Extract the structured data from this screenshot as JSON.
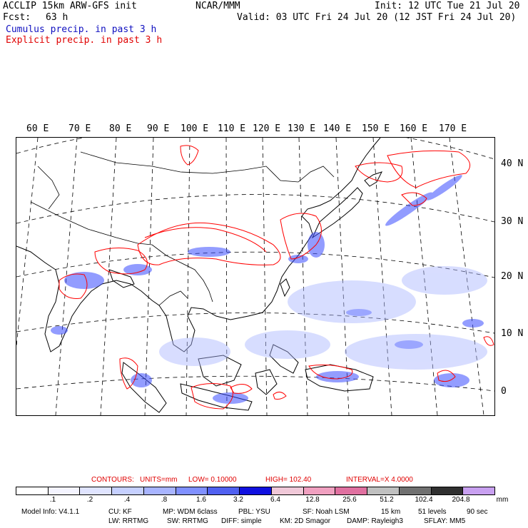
{
  "header": {
    "model": "ACCLIP 15km ARW-GFS init",
    "org": "NCAR/MMM",
    "init": "Init: 12 UTC Tue 21 Jul 20",
    "fcst_label": "Fcst:",
    "fcst_value": "63 h",
    "valid": "Valid: 03 UTC Fri 24 Jul 20 (12 JST Fri 24 Jul 20)",
    "legend_cumulus": "Cumulus precip. in past 3 h",
    "legend_explicit": "Explicit precip. in past 3 h"
  },
  "map": {
    "lon_labels": [
      "60 E",
      "70 E",
      "80 E",
      "90 E",
      "100 E",
      "110 E",
      "120 E",
      "130 E",
      "140 E",
      "150 E",
      "160 E",
      "170 E"
    ],
    "lat_labels": [
      "40 N",
      "30 N",
      "20 N",
      "10 N",
      "0"
    ],
    "colors": {
      "explicit_contour": "#ff0000",
      "cumulus_shade": "#3a4cff",
      "coastline": "#000000",
      "gridline": "#000000"
    }
  },
  "contours": {
    "label": "CONTOURS:",
    "units": "UNITS=mm",
    "low": "LOW= 0.10000",
    "high": "HIGH=  102.40",
    "interval": "INTERVAL=X  4.0000"
  },
  "colorbar": {
    "colors": [
      "#ffffff",
      "#f4f4ff",
      "#e0e4ff",
      "#c6d0ff",
      "#a8b4ff",
      "#8090ff",
      "#5060f0",
      "#1010e0",
      "#f0c8d8",
      "#f0a0c0",
      "#e070a0",
      "#c0c0c0",
      "#707070",
      "#303030",
      "#c8a0f0"
    ],
    "labels": [
      ".1",
      ".2",
      ".4",
      ".8",
      "1.6",
      "3.2",
      "6.4",
      "12.8",
      "25.6",
      "51.2",
      "102.4",
      "204.8"
    ],
    "unit": "mm"
  },
  "model_info": {
    "line1": [
      "Model Info: V4.1.1",
      "CU: KF",
      "MP: WDM 6class",
      "PBL: YSU",
      "SF: Noah LSM",
      "15 km",
      "51 levels",
      "90 sec"
    ],
    "line2": [
      "LW: RRTMG",
      "SW: RRTMG",
      "DIFF: simple",
      "KM: 2D Smagor",
      "DAMP: Rayleigh3",
      "SFLAY: MM5"
    ]
  }
}
